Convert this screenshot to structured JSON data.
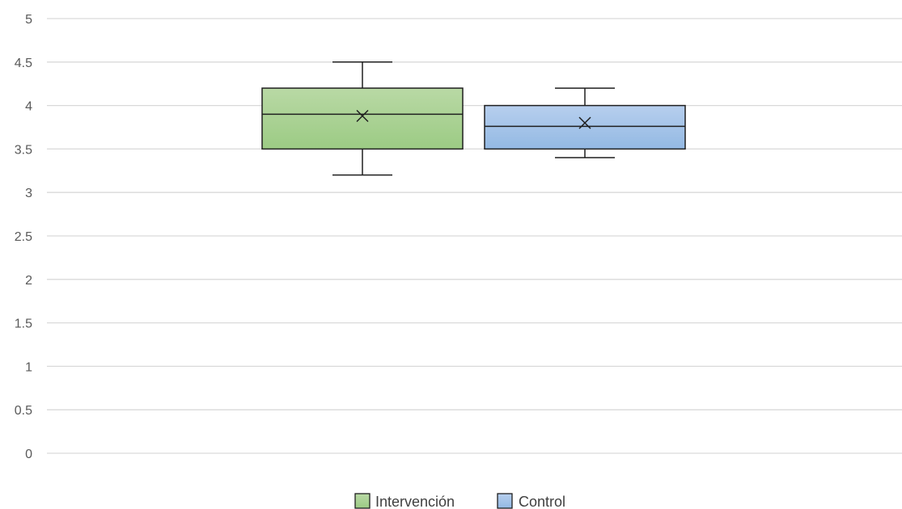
{
  "chart_data": {
    "type": "box",
    "title": "",
    "xlabel": "",
    "ylabel": "",
    "ylim": [
      0,
      5
    ],
    "y_ticks": [
      "0",
      "0.5",
      "1",
      "1.5",
      "2",
      "2.5",
      "3",
      "3.5",
      "4",
      "4.5",
      "5"
    ],
    "grid": true,
    "legend_position": "bottom",
    "series": [
      {
        "name": "Intervención",
        "color": "#a3cc8c",
        "min": 3.2,
        "q1": 3.5,
        "median": 3.9,
        "q3": 4.2,
        "max": 4.5,
        "mean": 3.88
      },
      {
        "name": "Control",
        "color": "#9fc0e6",
        "min": 3.4,
        "q1": 3.5,
        "median": 3.76,
        "q3": 4.0,
        "max": 4.2,
        "mean": 3.8
      }
    ]
  }
}
